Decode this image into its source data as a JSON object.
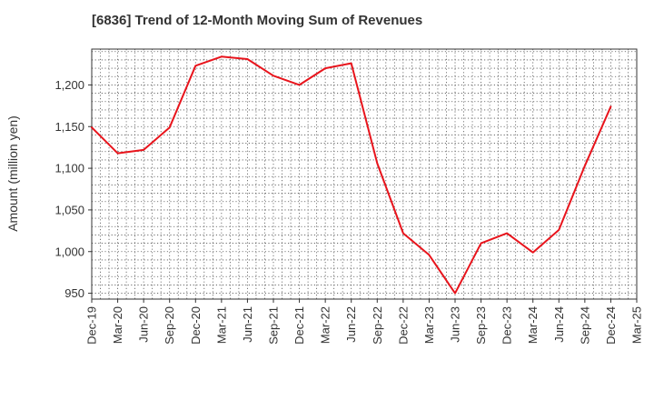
{
  "chart_data": {
    "type": "line",
    "title": "[6836]  Trend of 12-Month Moving Sum of Revenues",
    "xlabel": "",
    "ylabel": "Amount (million yen)",
    "x_ticks": [
      "Dec-19",
      "Mar-20",
      "Jun-20",
      "Sep-20",
      "Dec-20",
      "Mar-21",
      "Jun-21",
      "Sep-21",
      "Dec-21",
      "Mar-22",
      "Jun-22",
      "Sep-22",
      "Dec-22",
      "Mar-23",
      "Jun-23",
      "Sep-23",
      "Dec-23",
      "Mar-24",
      "Jun-24",
      "Sep-24",
      "Dec-24",
      "Mar-25"
    ],
    "y_ticks": [
      "950",
      "1,000",
      "1,050",
      "1,100",
      "1,150",
      "1,200"
    ],
    "y_tick_values": [
      950,
      1000,
      1050,
      1100,
      1150,
      1200
    ],
    "ylim": [
      943,
      1243
    ],
    "grid": true,
    "series": [
      {
        "color": "#e8141c",
        "x": [
          "Dec-19",
          "Mar-20",
          "Jun-20",
          "Sep-20",
          "Dec-20",
          "Mar-21",
          "Jun-21",
          "Sep-21",
          "Dec-21",
          "Mar-22",
          "Jun-22",
          "Sep-22",
          "Dec-22",
          "Mar-23",
          "Jun-23",
          "Sep-23",
          "Dec-23",
          "Mar-24",
          "Jun-24",
          "Sep-24",
          "Dec-24"
        ],
        "values": [
          1149,
          1118,
          1122,
          1149,
          1223,
          1234,
          1231,
          1211,
          1200,
          1220,
          1226,
          1106,
          1022,
          996,
          950,
          1010,
          1022,
          999,
          1026,
          1103,
          1174
        ]
      }
    ]
  }
}
